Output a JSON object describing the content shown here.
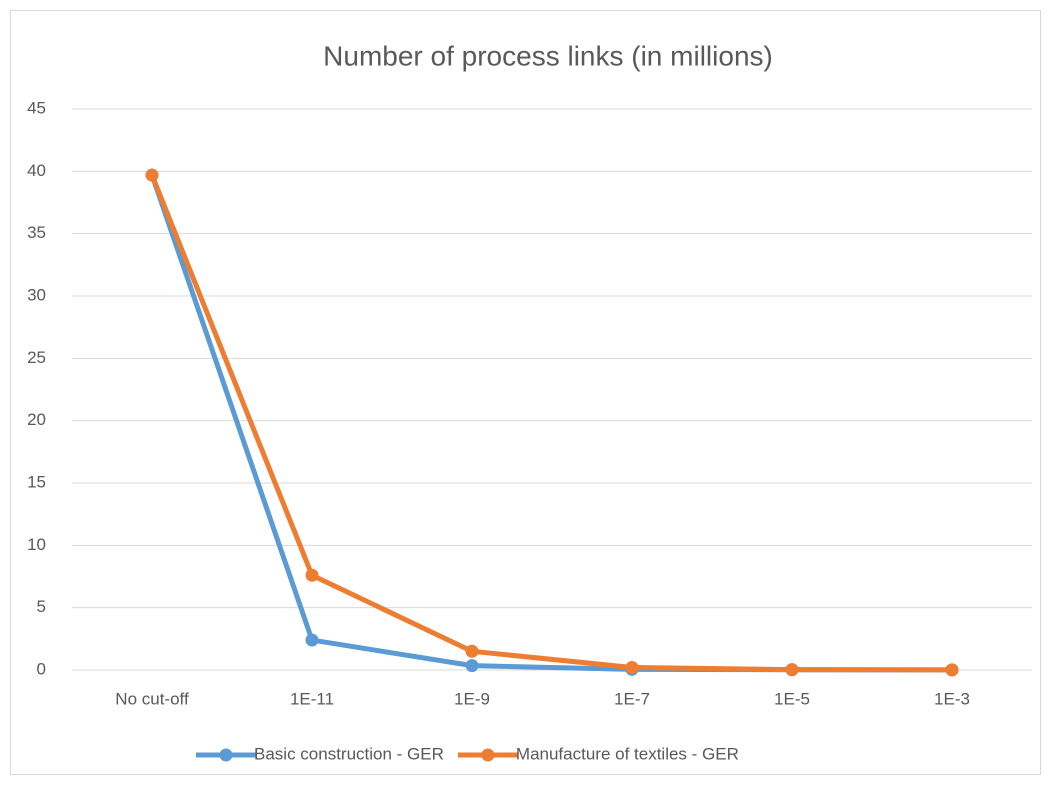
{
  "chart_data": {
    "type": "line",
    "title": "Number of process links (in millions)",
    "categories": [
      "No cut-off",
      "1E-11",
      "1E-9",
      "1E-7",
      "1E-5",
      "1E-3"
    ],
    "series": [
      {
        "name": "Basic construction - GER",
        "color": "#5b9bd5",
        "values": [
          39.7,
          2.4,
          0.35,
          0.05,
          0.02,
          0.01
        ]
      },
      {
        "name": "Manufacture of textiles - GER",
        "color": "#ed7d31",
        "values": [
          39.7,
          7.6,
          1.5,
          0.2,
          0.03,
          0.01
        ]
      }
    ],
    "ylim": [
      0,
      45
    ],
    "yticks": [
      0,
      5,
      10,
      15,
      20,
      25,
      30,
      35,
      40,
      45
    ],
    "grid": true,
    "legend": "bottom"
  }
}
